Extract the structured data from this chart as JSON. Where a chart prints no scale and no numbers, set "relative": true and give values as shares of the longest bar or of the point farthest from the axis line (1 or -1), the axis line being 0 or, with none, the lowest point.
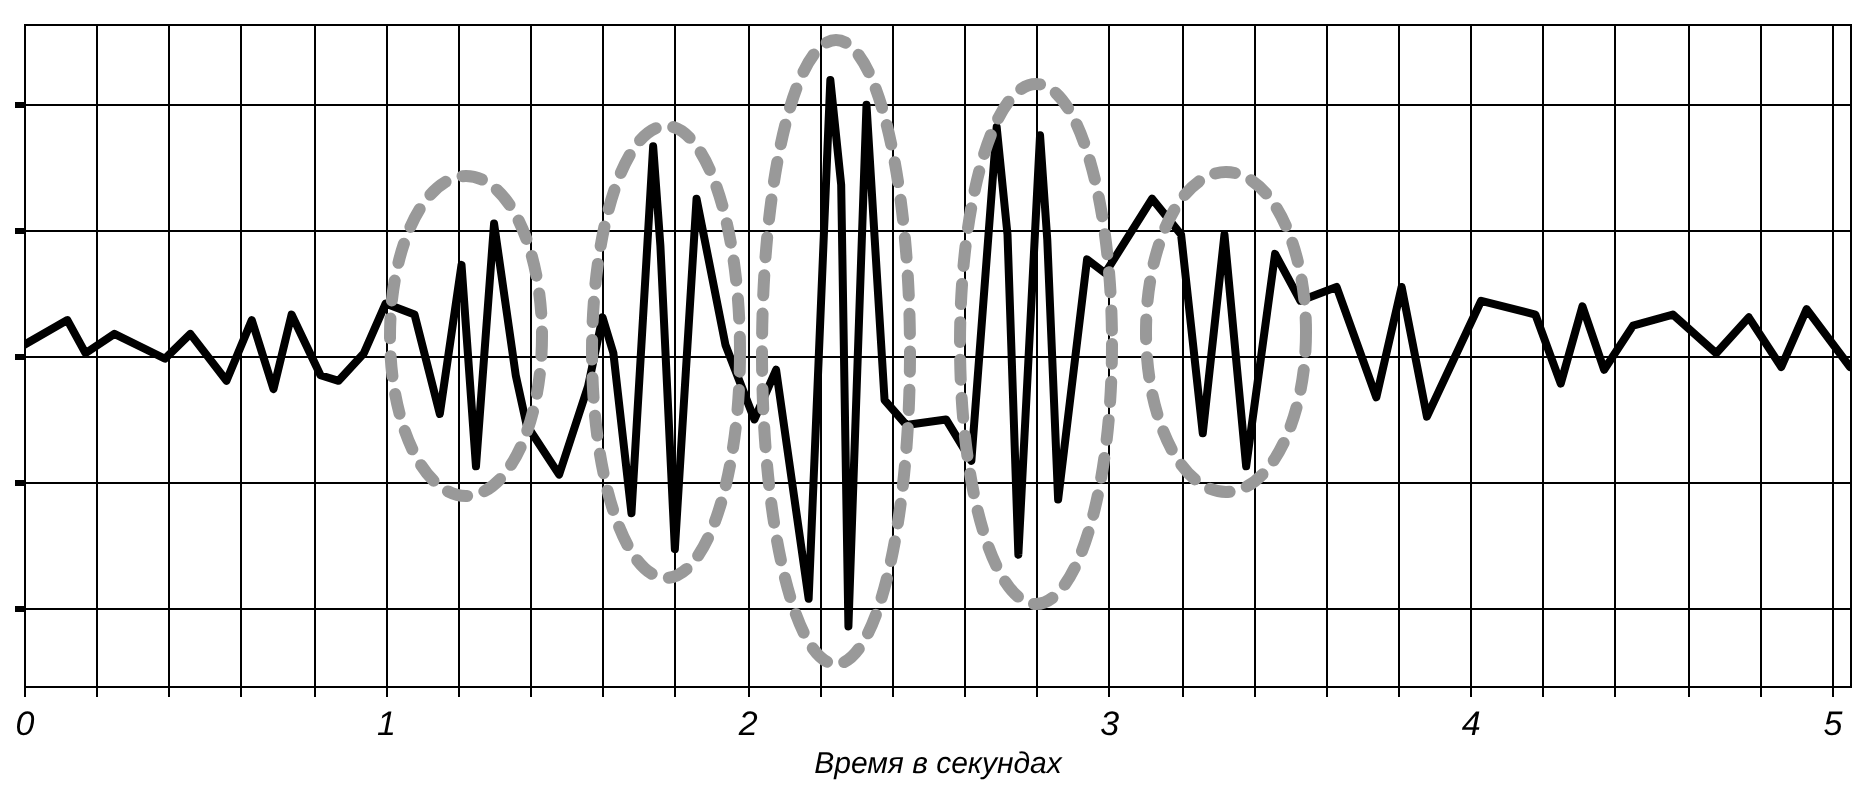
{
  "chart_data": {
    "type": "line",
    "relative": true,
    "xlabel": "Время в секундах",
    "x": [
      0,
      0.12,
      0.17,
      0.25,
      0.39,
      0.46,
      0.56,
      0.63,
      0.69,
      0.74,
      0.82,
      0.87,
      0.94,
      1.0,
      1.08,
      1.15,
      1.21,
      1.25,
      1.3,
      1.36,
      1.39,
      1.48,
      1.56,
      1.6,
      1.63,
      1.68,
      1.74,
      1.76,
      1.8,
      1.86,
      1.94,
      2.02,
      2.08,
      2.17,
      2.23,
      2.26,
      2.28,
      2.33,
      2.38,
      2.44,
      2.55,
      2.62,
      2.69,
      2.72,
      2.75,
      2.81,
      2.83,
      2.86,
      2.94,
      2.99,
      3.12,
      3.2,
      3.26,
      3.32,
      3.38,
      3.46,
      3.53,
      3.63,
      3.74,
      3.81,
      3.88,
      4.03,
      4.18,
      4.25,
      4.31,
      4.37,
      4.45,
      4.56,
      4.68,
      4.77,
      4.86,
      4.93,
      5.05
    ],
    "series": [
      {
        "color": "#000000",
        "values": [
          0.04,
          0.13,
          0.01,
          0.08,
          -0.01,
          0.08,
          -0.09,
          0.13,
          -0.12,
          0.15,
          -0.07,
          -0.09,
          0.01,
          0.19,
          0.15,
          -0.21,
          0.33,
          -0.4,
          0.48,
          -0.07,
          -0.25,
          -0.43,
          -0.11,
          0.14,
          0.01,
          -0.57,
          0.76,
          0.4,
          -0.7,
          0.57,
          0.04,
          -0.23,
          -0.05,
          -0.88,
          1.0,
          0.62,
          -0.98,
          0.91,
          -0.16,
          -0.25,
          -0.23,
          -0.38,
          0.83,
          0.44,
          -0.72,
          0.8,
          0.42,
          -0.52,
          0.35,
          0.3,
          0.57,
          0.44,
          -0.28,
          0.44,
          -0.4,
          0.37,
          0.2,
          0.25,
          -0.15,
          0.25,
          -0.22,
          0.2,
          0.15,
          -0.1,
          0.18,
          -0.05,
          0.11,
          0.15,
          0.01,
          0.14,
          -0.04,
          0.17,
          -0.04
        ]
      }
    ],
    "xlim": [
      0,
      5.05
    ],
    "xticks": [
      0,
      {
        "value": 0.2,
        "label": null
      },
      {
        "value": 0.4,
        "label": null
      },
      {
        "value": 0.6,
        "label": null
      },
      {
        "value": 0.8,
        "label": null
      },
      1,
      {
        "value": 1.2,
        "label": null
      },
      {
        "value": 1.4,
        "label": null
      },
      {
        "value": 1.6,
        "label": null
      },
      {
        "value": 1.8,
        "label": null
      },
      2,
      {
        "value": 2.2,
        "label": null
      },
      {
        "value": 2.4,
        "label": null
      },
      {
        "value": 2.6,
        "label": null
      },
      {
        "value": 2.8,
        "label": null
      },
      3,
      {
        "value": 3.2,
        "label": null
      },
      {
        "value": 3.4,
        "label": null
      },
      {
        "value": 3.6,
        "label": null
      },
      {
        "value": 3.8,
        "label": null
      },
      4,
      {
        "value": 4.2,
        "label": null
      },
      {
        "value": 4.4,
        "label": null
      },
      {
        "value": 4.6,
        "label": null
      },
      {
        "value": 4.8,
        "label": null
      },
      5
    ],
    "grid": true,
    "line_style": "solid",
    "marker": "none"
  }
}
